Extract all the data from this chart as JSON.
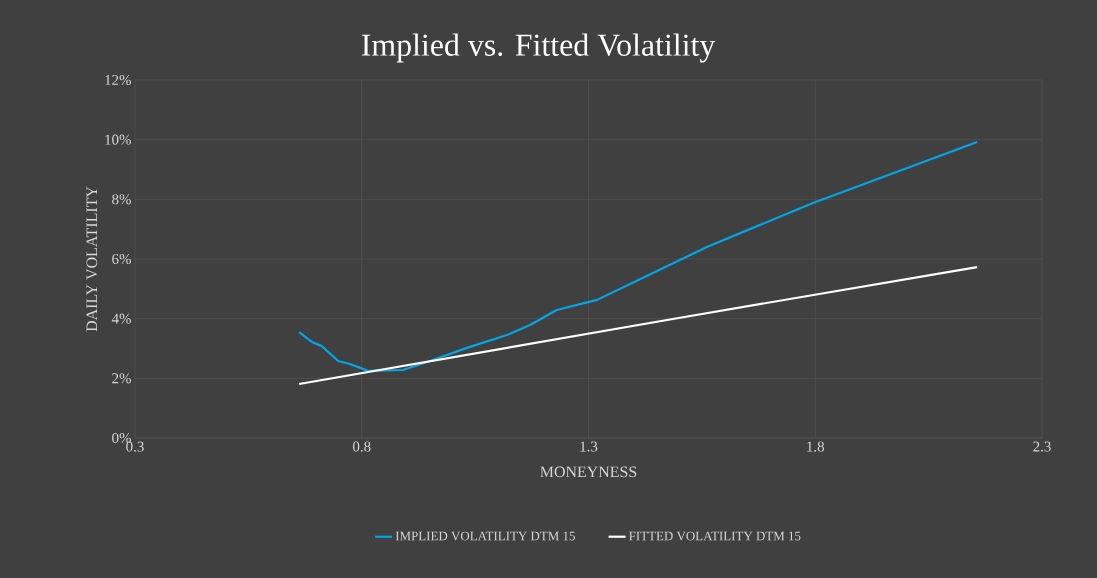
{
  "chart_data": {
    "type": "line",
    "title": "Implied vs. Fitted Volatility",
    "xlabel": "MONEYNESS",
    "ylabel": "DAILY VOLATILITY",
    "xlim": [
      0.3,
      2.3
    ],
    "xticks": [
      0.3,
      0.8,
      1.3,
      1.8,
      2.3
    ],
    "ylim": [
      0,
      12
    ],
    "yticks": [
      {
        "value": 0,
        "label": "0%"
      },
      {
        "value": 2,
        "label": "2%"
      },
      {
        "value": 4,
        "label": "4%"
      },
      {
        "value": 6,
        "label": "6%"
      },
      {
        "value": 8,
        "label": "8%"
      },
      {
        "value": 10,
        "label": "10%"
      },
      {
        "value": 12,
        "label": "12%"
      }
    ],
    "grid": true,
    "legend": "bottom",
    "line_style": "solid",
    "series": [
      {
        "name": "IMPLIED VOLATILITY DTM 15",
        "color": "#00a6e8",
        "x": [
          0.662,
          0.69,
          0.712,
          0.748,
          0.774,
          0.814,
          0.891,
          0.944,
          1.032,
          1.12,
          1.171,
          1.23,
          1.319,
          1.442,
          1.561,
          1.795,
          2.157
        ],
        "values": [
          3.55,
          3.22,
          3.08,
          2.58,
          2.48,
          2.25,
          2.28,
          2.55,
          3.02,
          3.45,
          3.79,
          4.29,
          4.63,
          5.53,
          6.4,
          7.88,
          9.92
        ]
      },
      {
        "name": "FITTED VOLATILITY DTM 15",
        "color": "#ffffff",
        "x": [
          0.662,
          1.486,
          2.157
        ],
        "values": [
          1.81,
          3.99,
          5.73
        ]
      }
    ]
  }
}
